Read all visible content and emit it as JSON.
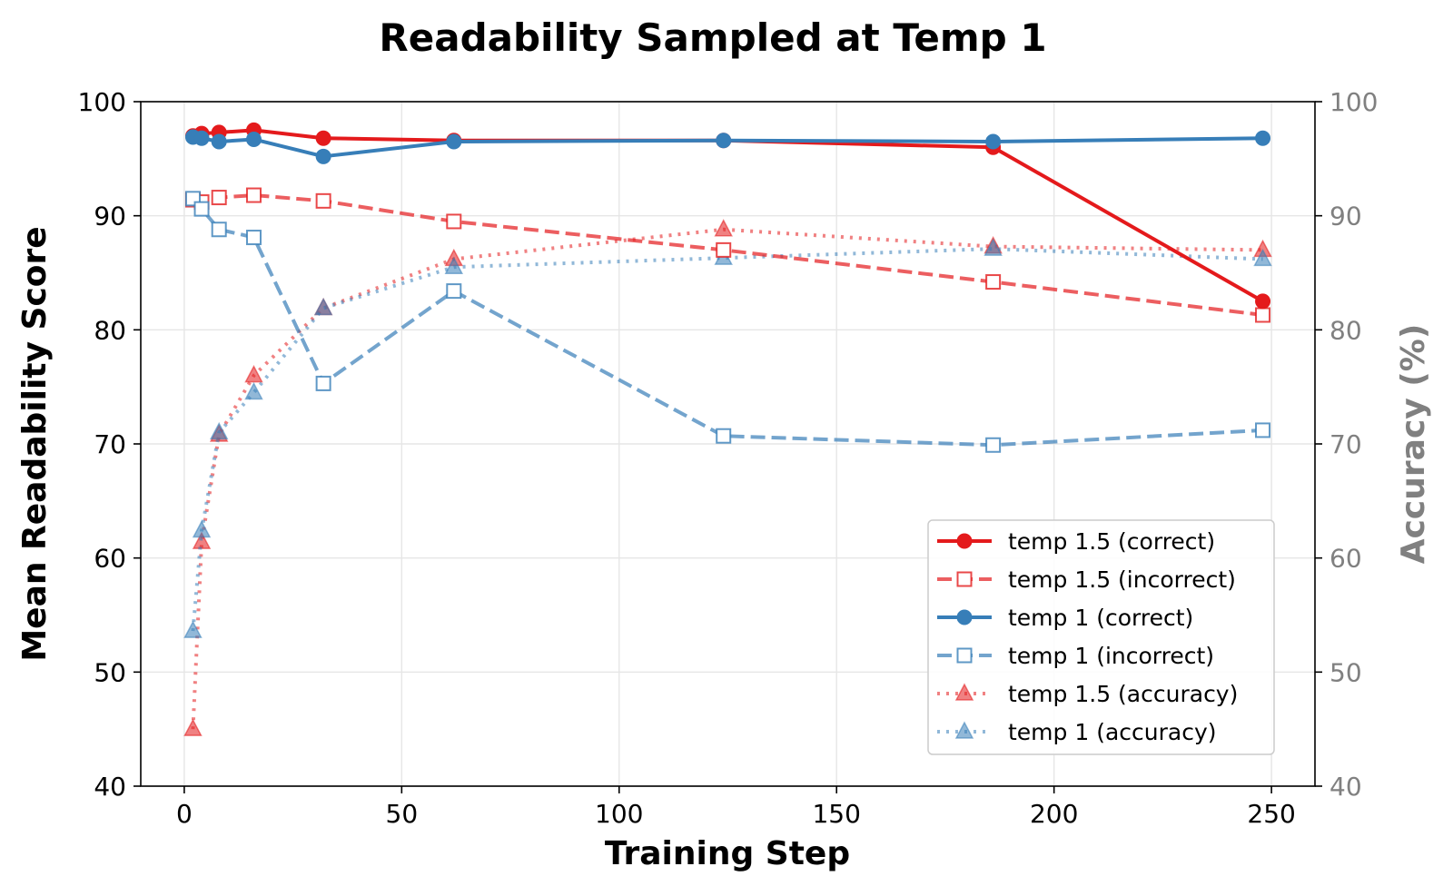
{
  "chart_data": {
    "type": "line",
    "title": "Readability Sampled at Temp 1",
    "xlabel": "Training Step",
    "ylabel": "Mean Readability Score",
    "y2label": "Accuracy (%)",
    "xlim": [
      -10,
      260
    ],
    "ylim": [
      40,
      100
    ],
    "y2lim": [
      40,
      100
    ],
    "xticks": [
      0,
      50,
      100,
      150,
      200,
      250
    ],
    "yticks": [
      40,
      50,
      60,
      70,
      80,
      90,
      100
    ],
    "y2ticks": [
      40,
      50,
      60,
      70,
      80,
      90,
      100
    ],
    "grid": true,
    "legend_position": "lower-right",
    "colors": {
      "red": "#e41a1c",
      "blue": "#377eb8",
      "secondary_axis": "#808080"
    },
    "series": [
      {
        "name": "temp 1.5 (correct)",
        "axis": "left",
        "color": "#e41a1c",
        "style": "solid",
        "marker": "circle",
        "x": [
          2,
          4,
          8,
          16,
          32,
          62,
          124,
          186,
          248
        ],
        "y": [
          97.0,
          97.2,
          97.3,
          97.5,
          96.8,
          96.6,
          96.6,
          96.0,
          82.5
        ]
      },
      {
        "name": "temp 1.5 (incorrect)",
        "axis": "left",
        "color": "#e41a1c",
        "style": "dashed",
        "marker": "square",
        "x": [
          2,
          4,
          8,
          16,
          32,
          62,
          124,
          186,
          248
        ],
        "y": [
          91.4,
          91.2,
          91.6,
          91.8,
          91.3,
          89.5,
          87.0,
          84.2,
          81.3
        ]
      },
      {
        "name": "temp 1 (correct)",
        "axis": "left",
        "color": "#377eb8",
        "style": "solid",
        "marker": "circle",
        "x": [
          2,
          4,
          8,
          16,
          32,
          62,
          124,
          186,
          248
        ],
        "y": [
          96.9,
          96.8,
          96.5,
          96.7,
          95.2,
          96.5,
          96.6,
          96.5,
          96.8
        ]
      },
      {
        "name": "temp 1 (incorrect)",
        "axis": "left",
        "color": "#377eb8",
        "style": "dashed",
        "marker": "square",
        "x": [
          2,
          4,
          8,
          16,
          32,
          62,
          124,
          186,
          248
        ],
        "y": [
          91.5,
          90.6,
          88.8,
          88.1,
          75.3,
          83.4,
          70.7,
          69.9,
          71.2
        ]
      },
      {
        "name": "temp 1.5 (accuracy)",
        "axis": "right",
        "color": "#e41a1c",
        "style": "dotted",
        "marker": "triangle",
        "x": [
          2,
          4,
          8,
          16,
          32,
          62,
          124,
          186,
          248
        ],
        "y": [
          45.0,
          61.4,
          70.8,
          76.0,
          81.9,
          86.2,
          88.8,
          87.3,
          87.0
        ]
      },
      {
        "name": "temp 1 (accuracy)",
        "axis": "right",
        "color": "#377eb8",
        "style": "dotted",
        "marker": "triangle",
        "x": [
          2,
          4,
          8,
          16,
          32,
          62,
          124,
          186,
          248
        ],
        "y": [
          53.6,
          62.4,
          71.0,
          74.5,
          81.9,
          85.5,
          86.3,
          87.1,
          86.2
        ]
      }
    ]
  }
}
